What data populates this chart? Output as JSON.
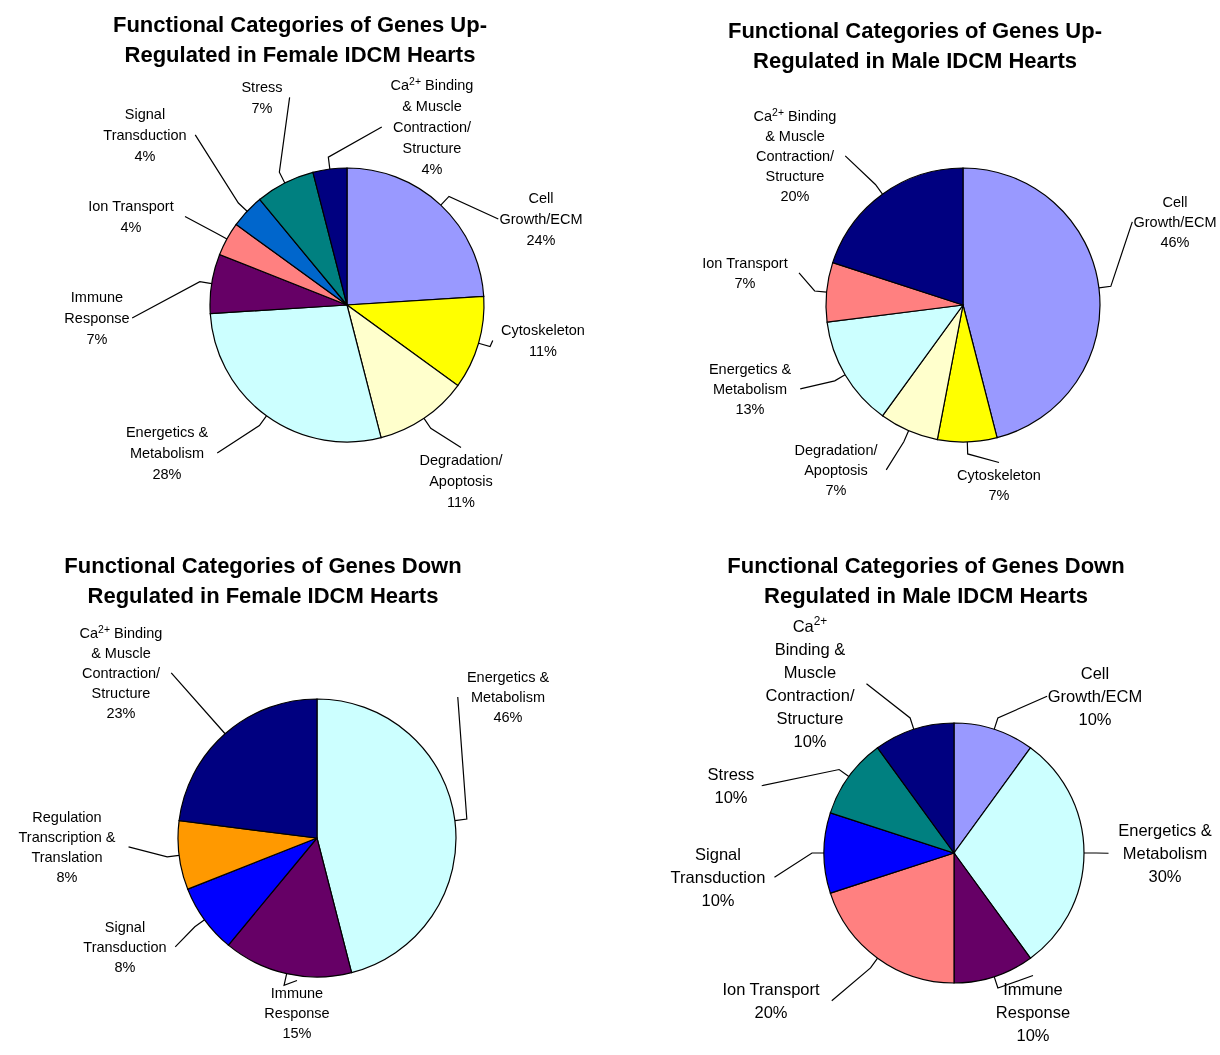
{
  "chart_data": [
    {
      "type": "pie",
      "title": "Functional Categories of Genes Up-\nRegulated in Female IDCM Hearts",
      "categories": [
        "Cell\nGrowth/ECM",
        "Cytoskeleton",
        "Degradation/\nApoptosis",
        "Energetics &\nMetabolism",
        "Immune\nResponse",
        "Ion Transport",
        "Signal\nTransduction",
        "Stress",
        "Ca$^{2+}$ Binding\n& Muscle\nContraction/\nStructure"
      ],
      "values": [
        24,
        11,
        11,
        28,
        7,
        4,
        4,
        7,
        4
      ],
      "value_labels": [
        "24%",
        "11%",
        "11%",
        "28%",
        "7%",
        "4%",
        "4%",
        "7%",
        "4%"
      ],
      "colors": [
        "#9999ff",
        "#ffff00",
        "#ffffcc",
        "#ccffff",
        "#660066",
        "#ff8080",
        "#0066cc",
        "#008080",
        "#000080"
      ]
    },
    {
      "type": "pie",
      "title": "Functional Categories of Genes Up-\nRegulated in Male IDCM Hearts",
      "categories": [
        "Cell\nGrowth/ECM",
        "Cytoskeleton",
        "Degradation/\nApoptosis",
        "Energetics &\nMetabolism",
        "Ion Transport",
        "Ca$^{2+}$ Binding\n& Muscle\nContraction/\nStructure"
      ],
      "values": [
        46,
        7,
        7,
        13,
        7,
        20
      ],
      "value_labels": [
        "46%",
        "7%",
        "7%",
        "13%",
        "7%",
        "20%"
      ],
      "colors": [
        "#9999ff",
        "#ffff00",
        "#ffffcc",
        "#ccffff",
        "#ff8080",
        "#000080"
      ]
    },
    {
      "type": "pie",
      "title": "Functional Categories of Genes Down\nRegulated in Female IDCM Hearts",
      "categories": [
        "Energetics &\nMetabolism",
        "Immune\nResponse",
        "Signal\nTransduction",
        "Regulation\nTranscription &\nTranslation",
        "Ca$^{2+}$ Binding\n& Muscle\nContraction/\nStructure"
      ],
      "values": [
        46,
        15,
        8,
        8,
        23
      ],
      "value_labels": [
        "46%",
        "15%",
        "8%",
        "8%",
        "23%"
      ],
      "colors": [
        "#ccffff",
        "#660066",
        "#0000ff",
        "#ff9900",
        "#000080"
      ]
    },
    {
      "type": "pie",
      "title": "Functional Categories of Genes Down\nRegulated in Male IDCM Hearts",
      "categories": [
        "Cell\nGrowth/ECM",
        "Energetics &\nMetabolism",
        "Immune\nResponse",
        "Ion Transport",
        "Signal\nTransduction",
        "Stress",
        "Ca$^{2+}$\nBinding &\nMuscle\nContraction/\nStructure"
      ],
      "values": [
        10,
        30,
        10,
        20,
        10,
        10,
        10
      ],
      "value_labels": [
        "10%",
        "30%",
        "10%",
        "20%",
        "10%",
        "10%",
        "10%"
      ],
      "colors": [
        "#9999ff",
        "#ccffff",
        "#660066",
        "#ff8080",
        "#0000ff",
        "#008080",
        "#000080"
      ]
    }
  ]
}
